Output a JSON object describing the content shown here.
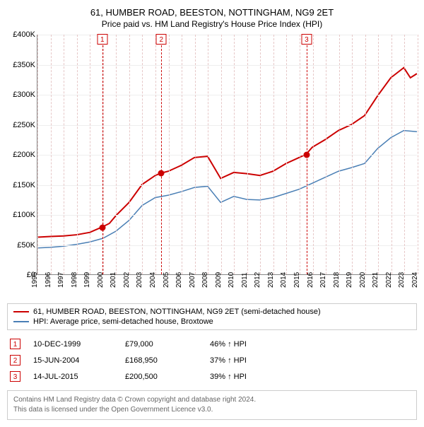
{
  "title": "61, HUMBER ROAD, BEESTON, NOTTINGHAM, NG9 2ET",
  "subtitle": "Price paid vs. HM Land Registry's House Price Index (HPI)",
  "chart": {
    "type": "line",
    "x_years": [
      1995,
      1996,
      1997,
      1998,
      1999,
      2000,
      2001,
      2002,
      2003,
      2004,
      2005,
      2006,
      2007,
      2008,
      2009,
      2010,
      2011,
      2012,
      2013,
      2014,
      2015,
      2016,
      2017,
      2018,
      2019,
      2020,
      2021,
      2022,
      2023,
      2024
    ],
    "ylim": [
      0,
      400000
    ],
    "ytick_step": 50000,
    "ytick_labels": [
      "£0",
      "£50K",
      "£100K",
      "£150K",
      "£200K",
      "£250K",
      "£300K",
      "£350K",
      "£400K"
    ],
    "series": [
      {
        "name": "price_paid",
        "label": "61, HUMBER ROAD, BEESTON, NOTTINGHAM, NG9 2ET (semi-detached house)",
        "color": "#cc0000",
        "line_width": 2,
        "points": [
          [
            1995,
            62000
          ],
          [
            1996,
            63000
          ],
          [
            1997,
            64000
          ],
          [
            1998,
            66000
          ],
          [
            1999,
            70000
          ],
          [
            1999.95,
            79000
          ],
          [
            2000.5,
            85000
          ],
          [
            2001,
            98000
          ],
          [
            2002,
            120000
          ],
          [
            2003,
            150000
          ],
          [
            2004,
            165000
          ],
          [
            2004.45,
            168950
          ],
          [
            2005,
            172000
          ],
          [
            2006,
            182000
          ],
          [
            2007,
            195000
          ],
          [
            2008,
            197000
          ],
          [
            2009,
            160000
          ],
          [
            2010,
            170000
          ],
          [
            2011,
            168000
          ],
          [
            2012,
            165000
          ],
          [
            2013,
            172000
          ],
          [
            2014,
            185000
          ],
          [
            2015,
            195000
          ],
          [
            2015.53,
            200500
          ],
          [
            2016,
            212000
          ],
          [
            2017,
            225000
          ],
          [
            2018,
            240000
          ],
          [
            2019,
            250000
          ],
          [
            2020,
            265000
          ],
          [
            2021,
            298000
          ],
          [
            2022,
            328000
          ],
          [
            2023,
            345000
          ],
          [
            2023.5,
            328000
          ],
          [
            2024,
            335000
          ]
        ]
      },
      {
        "name": "hpi",
        "label": "HPI: Average price, semi-detached house, Broxtowe",
        "color": "#4a7fb5",
        "line_width": 1.5,
        "points": [
          [
            1995,
            44000
          ],
          [
            1996,
            45000
          ],
          [
            1997,
            47000
          ],
          [
            1998,
            50000
          ],
          [
            1999,
            54000
          ],
          [
            2000,
            60000
          ],
          [
            2001,
            72000
          ],
          [
            2002,
            90000
          ],
          [
            2003,
            115000
          ],
          [
            2004,
            128000
          ],
          [
            2005,
            132000
          ],
          [
            2006,
            138000
          ],
          [
            2007,
            145000
          ],
          [
            2008,
            147000
          ],
          [
            2009,
            120000
          ],
          [
            2010,
            130000
          ],
          [
            2011,
            125000
          ],
          [
            2012,
            124000
          ],
          [
            2013,
            128000
          ],
          [
            2014,
            135000
          ],
          [
            2015,
            142000
          ],
          [
            2016,
            152000
          ],
          [
            2017,
            162000
          ],
          [
            2018,
            172000
          ],
          [
            2019,
            178000
          ],
          [
            2020,
            185000
          ],
          [
            2021,
            210000
          ],
          [
            2022,
            228000
          ],
          [
            2023,
            240000
          ],
          [
            2024,
            238000
          ]
        ]
      }
    ],
    "markers": [
      {
        "idx": "1",
        "year": 1999.95,
        "value": 79000
      },
      {
        "idx": "2",
        "year": 2004.45,
        "value": 168950
      },
      {
        "idx": "3",
        "year": 2015.53,
        "value": 200500
      }
    ],
    "background_color": "#ffffff",
    "grid_color": "#eeeeee",
    "axis_color": "#888888",
    "marker_color": "#cc0000",
    "vgrid_color": "#e6c7c7"
  },
  "legend": {
    "items": [
      {
        "color": "#cc0000",
        "label": "61, HUMBER ROAD, BEESTON, NOTTINGHAM, NG9 2ET (semi-detached house)"
      },
      {
        "color": "#4a7fb5",
        "label": "HPI: Average price, semi-detached house, Broxtowe"
      }
    ]
  },
  "transactions": [
    {
      "idx": "1",
      "date": "10-DEC-1999",
      "price": "£79,000",
      "delta": "46% ↑ HPI"
    },
    {
      "idx": "2",
      "date": "15-JUN-2004",
      "price": "£168,950",
      "delta": "37% ↑ HPI"
    },
    {
      "idx": "3",
      "date": "14-JUL-2015",
      "price": "£200,500",
      "delta": "39% ↑ HPI"
    }
  ],
  "footer": {
    "line1": "Contains HM Land Registry data © Crown copyright and database right 2024.",
    "line2": "This data is licensed under the Open Government Licence v3.0."
  }
}
